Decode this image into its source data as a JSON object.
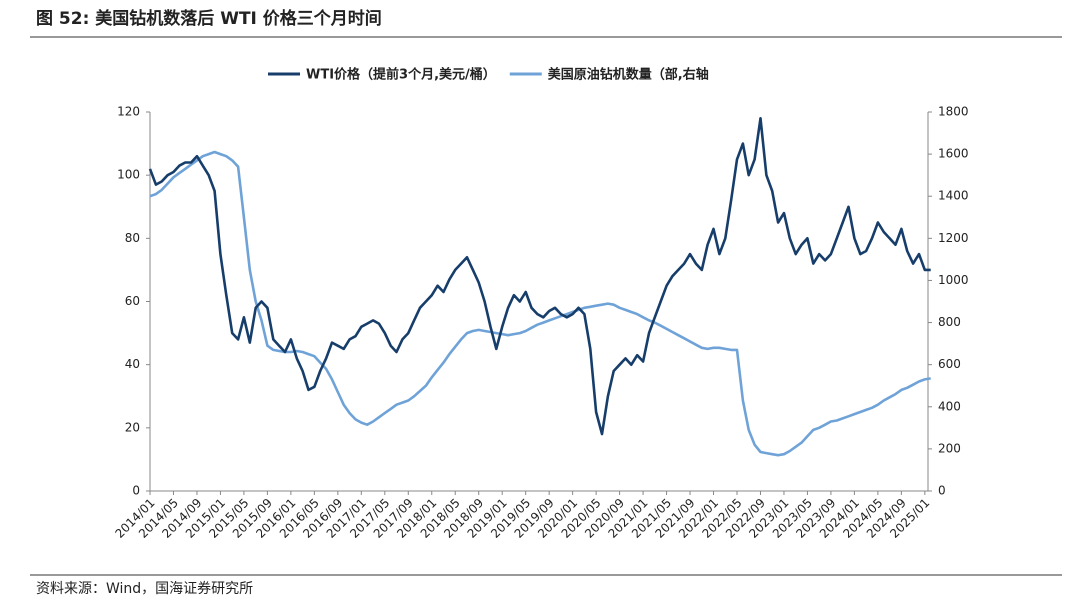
{
  "chart_data": {
    "type": "line",
    "title": "图 52:  美国钻机数落后 WTI 价格三个月时间",
    "source": "资料来源：Wind，国海证券研究所",
    "categories": [
      "2014/01",
      null,
      null,
      null,
      "2014/05",
      null,
      null,
      null,
      "2014/09",
      null,
      null,
      null,
      "2015/01",
      null,
      null,
      null,
      "2015/05",
      null,
      null,
      null,
      "2015/09",
      null,
      null,
      null,
      "2016/01",
      null,
      null,
      null,
      "2016/05",
      null,
      null,
      null,
      "2016/09",
      null,
      null,
      null,
      "2017/01",
      null,
      null,
      null,
      "2017/05",
      null,
      null,
      null,
      "2017/09",
      null,
      null,
      null,
      "2018/01",
      null,
      null,
      null,
      "2018/05",
      null,
      null,
      null,
      "2018/09",
      null,
      null,
      null,
      "2019/01",
      null,
      null,
      null,
      "2019/05",
      null,
      null,
      null,
      "2019/09",
      null,
      null,
      null,
      "2020/01",
      null,
      null,
      null,
      "2020/05",
      null,
      null,
      null,
      "2020/09",
      null,
      null,
      null,
      "2021/01",
      null,
      null,
      null,
      "2021/05",
      null,
      null,
      null,
      "2021/09",
      null,
      null,
      null,
      "2022/01",
      null,
      null,
      null,
      "2022/05",
      null,
      null,
      null,
      "2022/09",
      null,
      null,
      null,
      "2023/01",
      null,
      null,
      null,
      "2023/05",
      null,
      null,
      null,
      "2023/09",
      null,
      null,
      null,
      "2024/01",
      null,
      null,
      null,
      "2024/05",
      null,
      null,
      null,
      "2024/09",
      null,
      null,
      null,
      "2025/01",
      null
    ],
    "series": [
      {
        "name": "WTI价格（提前3个月,美元/桶）",
        "color": "#173e6b",
        "axis": "y",
        "values": [
          102,
          97,
          98,
          100,
          101,
          103,
          104,
          104,
          106,
          103,
          100,
          95,
          75,
          62,
          50,
          48,
          55,
          47,
          58,
          60,
          58,
          48,
          46,
          44,
          48,
          42,
          38,
          32,
          33,
          38,
          42,
          47,
          46,
          45,
          48,
          49,
          52,
          53,
          54,
          53,
          50,
          46,
          44,
          48,
          50,
          54,
          58,
          60,
          62,
          65,
          63,
          67,
          70,
          72,
          74,
          70,
          66,
          60,
          52,
          45,
          52,
          58,
          62,
          60,
          63,
          58,
          56,
          55,
          57,
          58,
          56,
          55,
          56,
          58,
          56,
          45,
          25,
          18,
          30,
          38,
          40,
          42,
          40,
          43,
          41,
          50,
          55,
          60,
          65,
          68,
          70,
          72,
          75,
          72,
          70,
          78,
          83,
          75,
          80,
          92,
          105,
          110,
          100,
          105,
          118,
          100,
          95,
          85,
          88,
          80,
          75,
          78,
          80,
          72,
          75,
          73,
          75,
          80,
          85,
          90,
          80,
          75,
          76,
          80,
          85,
          82,
          80,
          78,
          83,
          76,
          72,
          75,
          70,
          70
        ]
      },
      {
        "name": "美国原油钻机数量（部,右轴",
        "color": "#6fa3d8",
        "axis": "y2",
        "values": [
          1400,
          1410,
          1430,
          1460,
          1490,
          1510,
          1530,
          1550,
          1570,
          1590,
          1600,
          1610,
          1600,
          1590,
          1570,
          1540,
          1300,
          1050,
          900,
          810,
          690,
          670,
          665,
          660,
          660,
          665,
          660,
          650,
          640,
          610,
          580,
          530,
          470,
          410,
          370,
          340,
          325,
          315,
          330,
          350,
          370,
          390,
          410,
          420,
          430,
          450,
          475,
          500,
          540,
          575,
          610,
          650,
          685,
          720,
          750,
          760,
          765,
          760,
          755,
          750,
          745,
          740,
          745,
          750,
          760,
          775,
          790,
          800,
          810,
          820,
          830,
          840,
          850,
          860,
          870,
          875,
          880,
          885,
          890,
          885,
          870,
          860,
          850,
          840,
          825,
          810,
          800,
          785,
          770,
          755,
          740,
          725,
          710,
          695,
          680,
          675,
          680,
          680,
          675,
          670,
          670,
          430,
          290,
          220,
          185,
          180,
          175,
          170,
          175,
          190,
          210,
          230,
          260,
          290,
          300,
          315,
          330,
          335,
          345,
          355,
          365,
          375,
          385,
          395,
          410,
          430,
          445,
          460,
          480,
          490,
          505,
          520,
          530,
          535
        ]
      }
    ],
    "ylim": [
      0,
      120
    ],
    "yticks": [
      0,
      20,
      40,
      60,
      80,
      100,
      120
    ],
    "y2lim": [
      0,
      1800
    ],
    "y2ticks": [
      0,
      200,
      400,
      600,
      800,
      1000,
      1200,
      1400,
      1600,
      1800
    ],
    "legend": "top",
    "grid": false
  }
}
